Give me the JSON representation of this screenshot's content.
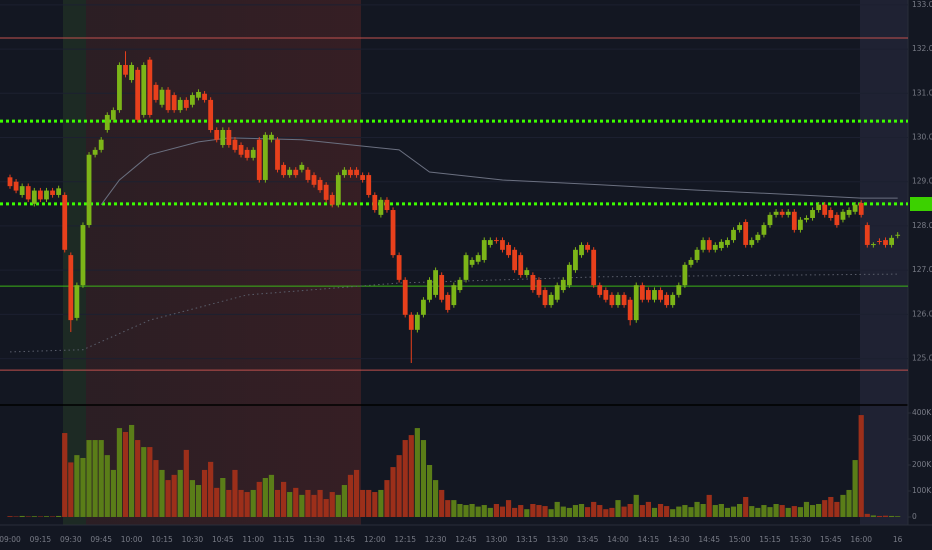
{
  "chart_data": {
    "type": "candlestick",
    "categories": [
      "09:00",
      null,
      null,
      null,
      null,
      "09:15",
      null,
      null,
      null,
      null,
      "09:30",
      null,
      null,
      null,
      null,
      "09:45",
      null,
      null,
      null,
      null,
      "10:00",
      null,
      null,
      null,
      null,
      "10:15",
      null,
      null,
      null,
      null,
      "10:30",
      null,
      null,
      null,
      null,
      "10:45",
      null,
      null,
      null,
      null,
      "11:00",
      null,
      null,
      null,
      null,
      "11:15",
      null,
      null,
      null,
      null,
      "11:30",
      null,
      null,
      null,
      null,
      "11:45",
      null,
      null,
      null,
      null,
      "12:00",
      null,
      null,
      null,
      null,
      "12:15",
      null,
      null,
      null,
      null,
      "12:30",
      null,
      null,
      null,
      null,
      "12:45",
      null,
      null,
      null,
      null,
      "13:00",
      null,
      null,
      null,
      null,
      "13:15",
      null,
      null,
      null,
      null,
      "13:30",
      null,
      null,
      null,
      null,
      "13:45",
      null,
      null,
      null,
      null,
      "14:00",
      null,
      null,
      null,
      null,
      "14:15",
      null,
      null,
      null,
      null,
      "14:30",
      null,
      null,
      null,
      null,
      "14:45",
      null,
      null,
      null,
      null,
      "15:00",
      null,
      null,
      null,
      null,
      "15:15",
      null,
      null,
      null,
      null,
      "15:30",
      null,
      null,
      null,
      null,
      "15:45",
      null,
      null,
      null,
      null,
      "16:00",
      null,
      null,
      null,
      null,
      null,
      "16"
    ],
    "open": [
      129.1,
      129.0,
      128.7,
      128.9,
      128.5,
      128.8,
      128.6,
      128.8,
      128.7,
      128.7,
      127.34,
      125.92,
      126.66,
      128.02,
      129.61,
      129.72,
      130.17,
      130.4,
      130.62,
      131.64,
      131.3,
      131.53,
      130.51,
      131.76,
      131.19,
      130.74,
      131.08,
      130.96,
      130.62,
      130.85,
      130.74,
      130.9,
      130.99,
      130.85,
      130.17,
      129.83,
      130.17,
      129.95,
      129.83,
      129.72,
      129.54,
      129.95,
      129.04,
      129.95,
      129.95,
      129.38,
      129.15,
      129.27,
      129.27,
      129.27,
      129.15,
      129.04,
      128.93,
      128.7,
      128.48,
      129.15,
      129.27,
      129.27,
      129.15,
      129.15,
      128.7,
      128.25,
      128.59,
      128.36,
      127.34,
      126.78,
      125.99,
      125.65,
      125.99,
      126.33,
      126.44,
      126.89,
      126.44,
      126.21,
      126.55,
      126.78,
      127.12,
      127.19,
      127.23,
      127.57,
      127.68,
      127.68,
      127.57,
      127.46,
      127.34,
      126.89,
      126.89,
      126.78,
      126.55,
      126.21,
      126.33,
      126.55,
      126.66,
      127.0,
      127.34,
      127.57,
      127.46,
      126.66,
      126.55,
      126.44,
      126.21,
      126.44,
      126.33,
      125.87,
      126.66,
      126.55,
      126.33,
      126.55,
      126.44,
      126.21,
      126.44,
      126.66,
      127.12,
      127.23,
      127.46,
      127.68,
      127.46,
      127.5,
      127.57,
      127.68,
      127.91,
      128.09,
      127.57,
      127.68,
      127.8,
      128.02,
      128.25,
      128.32,
      128.25,
      128.32,
      127.91,
      128.14,
      128.18,
      128.36,
      128.48,
      128.36,
      128.25,
      128.14,
      128.25,
      128.32,
      128.52,
      128.02,
      127.57,
      127.66,
      127.68,
      127.57,
      127.78
    ],
    "high": [
      129.16,
      129.06,
      128.96,
      128.96,
      128.86,
      128.86,
      128.86,
      128.86,
      128.91,
      128.76,
      127.4,
      126.72,
      128.08,
      129.67,
      129.78,
      130.01,
      130.57,
      130.68,
      131.7,
      131.95,
      131.7,
      131.59,
      131.7,
      131.82,
      131.25,
      131.14,
      131.14,
      131.02,
      130.91,
      130.91,
      131.02,
      131.09,
      131.05,
      130.91,
      130.23,
      130.23,
      130.23,
      130.01,
      129.89,
      129.78,
      129.78,
      130.01,
      130.12,
      130.12,
      130.01,
      129.44,
      129.33,
      129.33,
      129.44,
      129.33,
      129.21,
      129.1,
      128.99,
      128.76,
      129.21,
      129.33,
      129.33,
      129.33,
      129.21,
      129.21,
      128.76,
      128.65,
      128.65,
      128.42,
      127.4,
      126.84,
      126.05,
      126.05,
      126.39,
      126.84,
      127.06,
      126.95,
      126.5,
      126.72,
      126.84,
      127.4,
      127.29,
      127.4,
      127.74,
      127.74,
      127.74,
      127.74,
      127.63,
      127.52,
      127.4,
      127.06,
      126.95,
      126.84,
      126.61,
      126.5,
      126.72,
      126.84,
      127.18,
      127.52,
      127.63,
      127.63,
      127.52,
      126.72,
      126.61,
      126.5,
      126.5,
      126.5,
      126.39,
      126.72,
      126.72,
      126.61,
      126.61,
      126.61,
      126.5,
      126.5,
      126.72,
      127.18,
      127.29,
      127.52,
      127.74,
      127.74,
      127.63,
      127.7,
      127.74,
      127.97,
      128.08,
      128.15,
      127.74,
      127.86,
      128.08,
      128.31,
      128.38,
      128.38,
      128.38,
      128.38,
      128.2,
      128.24,
      128.42,
      128.54,
      128.54,
      128.42,
      128.31,
      128.38,
      128.42,
      128.54,
      128.58,
      128.08,
      127.63,
      127.72,
      127.74,
      127.79,
      127.86
    ],
    "low": [
      128.84,
      128.74,
      128.64,
      128.54,
      128.44,
      128.54,
      128.54,
      128.64,
      128.64,
      127.4,
      125.6,
      125.86,
      126.6,
      127.96,
      129.55,
      129.66,
      130.11,
      130.34,
      130.56,
      131.36,
      131.24,
      130.34,
      130.45,
      130.45,
      130.79,
      130.68,
      130.56,
      130.56,
      130.56,
      130.61,
      130.68,
      130.84,
      130.79,
      130.11,
      129.89,
      129.77,
      129.77,
      129.66,
      129.55,
      129.48,
      129.48,
      128.98,
      128.98,
      129.89,
      129.21,
      129.09,
      129.09,
      129.09,
      129.21,
      128.98,
      128.87,
      128.75,
      128.53,
      128.42,
      128.42,
      129.09,
      129.09,
      129.09,
      128.98,
      128.64,
      128.3,
      128.19,
      128.3,
      127.28,
      126.72,
      125.93,
      124.9,
      125.59,
      125.93,
      126.27,
      126.38,
      126.27,
      126.04,
      126.15,
      126.49,
      126.72,
      127.06,
      127.13,
      127.17,
      127.51,
      127.6,
      127.4,
      127.28,
      126.94,
      126.83,
      126.83,
      126.49,
      126.38,
      126.15,
      126.15,
      126.27,
      126.49,
      126.6,
      126.94,
      127.28,
      127.4,
      126.6,
      126.38,
      126.27,
      126.15,
      126.15,
      126.15,
      125.75,
      125.81,
      126.27,
      126.27,
      126.27,
      126.27,
      126.15,
      126.15,
      126.38,
      126.6,
      127.06,
      127.17,
      127.4,
      127.4,
      127.4,
      127.44,
      127.51,
      127.62,
      127.85,
      127.51,
      127.51,
      127.62,
      127.74,
      127.96,
      128.19,
      128.19,
      128.19,
      127.85,
      127.85,
      128.08,
      128.12,
      128.3,
      128.19,
      128.12,
      127.96,
      128.08,
      128.19,
      128.26,
      128.19,
      127.51,
      127.51,
      127.58,
      127.51,
      127.51,
      127.72
    ],
    "close": [
      128.9,
      128.8,
      128.9,
      128.6,
      128.8,
      128.6,
      128.8,
      128.7,
      128.85,
      127.46,
      125.87,
      126.66,
      128.02,
      129.61,
      129.72,
      129.95,
      130.51,
      130.62,
      131.64,
      131.42,
      131.64,
      130.4,
      131.64,
      130.51,
      130.85,
      131.08,
      130.62,
      130.62,
      130.85,
      130.67,
      130.96,
      131.03,
      130.85,
      130.17,
      129.95,
      130.17,
      129.83,
      129.72,
      129.61,
      129.54,
      129.72,
      129.04,
      130.06,
      130.06,
      129.27,
      129.15,
      129.27,
      129.15,
      129.38,
      129.04,
      128.93,
      128.81,
      128.59,
      128.48,
      129.15,
      129.27,
      129.15,
      129.15,
      129.04,
      128.7,
      128.36,
      128.59,
      128.36,
      127.34,
      126.78,
      125.99,
      125.65,
      125.99,
      126.33,
      126.78,
      127.0,
      126.33,
      126.1,
      126.66,
      126.78,
      127.34,
      127.23,
      127.34,
      127.68,
      127.68,
      127.66,
      127.46,
      127.34,
      127.0,
      126.89,
      127.0,
      126.55,
      126.44,
      126.21,
      126.44,
      126.66,
      126.78,
      127.12,
      127.46,
      127.57,
      127.46,
      126.66,
      126.44,
      126.33,
      126.21,
      126.44,
      126.21,
      125.87,
      126.66,
      126.33,
      126.33,
      126.55,
      126.33,
      126.21,
      126.44,
      126.66,
      127.12,
      127.23,
      127.46,
      127.68,
      127.46,
      127.57,
      127.64,
      127.68,
      127.91,
      128.02,
      127.57,
      127.68,
      127.8,
      128.02,
      128.25,
      128.32,
      128.25,
      128.32,
      127.91,
      128.14,
      128.18,
      128.36,
      128.48,
      128.25,
      128.18,
      128.02,
      128.32,
      128.36,
      128.48,
      128.25,
      127.57,
      127.59,
      127.64,
      127.57,
      127.73,
      127.8
    ],
    "up_color": "#7cb518",
    "down_color": "#e8401c",
    "ylim": [
      123.95,
      133.11
    ],
    "yticks": [
      {
        "value": 133,
        "label": "133.00"
      },
      {
        "value": 132,
        "label": "132.00"
      },
      {
        "value": 131,
        "label": "131.00"
      },
      {
        "value": 130,
        "label": "130.00"
      },
      {
        "value": 129,
        "label": "129.00"
      },
      {
        "value": 128,
        "label": "128.00"
      },
      {
        "value": 127,
        "label": "127.00"
      },
      {
        "value": 126,
        "label": "126.00"
      },
      {
        "value": 125,
        "label": "125.00"
      }
    ],
    "grid": true,
    "levels": [
      {
        "value": 132.25,
        "color": "#c0504d",
        "style": "solid"
      },
      {
        "value": 130.37,
        "color": "#3cff00",
        "style": "dotted"
      },
      {
        "value": 128.5,
        "color": "#3cff00",
        "style": "dotted"
      },
      {
        "value": 126.64,
        "color": "#3cb317",
        "style": "solid"
      },
      {
        "value": 124.74,
        "color": "#c0504d",
        "style": "solid"
      }
    ],
    "averages": [
      {
        "color": "#6b7080",
        "style": "solid",
        "x": [
          15,
          18,
          23,
          31,
          36,
          48,
          64,
          69,
          81,
          97,
          113,
          130,
          140,
          146
        ],
        "values": [
          128.48,
          129.04,
          129.61,
          129.9,
          129.99,
          129.95,
          129.72,
          129.22,
          129.04,
          128.93,
          128.81,
          128.7,
          128.63,
          128.63
        ]
      },
      {
        "color": "#5a5e6b",
        "style": "dotted",
        "x": [
          0,
          12,
          23,
          39,
          64,
          97,
          146
        ],
        "values": [
          125.15,
          125.2,
          125.87,
          126.44,
          126.71,
          126.85,
          126.91
        ]
      }
    ],
    "volume": {
      "ylim": [
        -30800,
        430800
      ],
      "yticks": [
        0,
        {
          "value": 100000,
          "label": "100K"
        },
        {
          "value": 200000,
          "label": "200K"
        },
        {
          "value": 300000,
          "label": "300K"
        },
        {
          "value": 400000,
          "label": "400K"
        }
      ],
      "up_color": "#5a7d18",
      "down_color": "#9c2f1a",
      "values": [
        3000,
        2000,
        4000,
        2000,
        3000,
        2000,
        3000,
        2000,
        4000,
        323000,
        210000,
        238000,
        227000,
        296000,
        296000,
        296000,
        238000,
        181000,
        342000,
        327000,
        354000,
        296000,
        269000,
        269000,
        219000,
        181000,
        142000,
        162000,
        181000,
        258000,
        142000,
        123000,
        181000,
        212000,
        112000,
        150000,
        104000,
        181000,
        104000,
        96000,
        104000,
        135000,
        150000,
        162000,
        104000,
        135000,
        96000,
        112000,
        85000,
        104000,
        85000,
        104000,
        69000,
        96000,
        85000,
        123000,
        162000,
        181000,
        104000,
        104000,
        96000,
        104000,
        142000,
        192000,
        238000,
        296000,
        315000,
        342000,
        296000,
        200000,
        142000,
        104000,
        65000,
        65000,
        50000,
        46000,
        50000,
        40000,
        46000,
        35000,
        50000,
        40000,
        65000,
        35000,
        46000,
        30000,
        50000,
        46000,
        42000,
        30000,
        58000,
        40000,
        35000,
        46000,
        50000,
        38000,
        58000,
        46000,
        30000,
        35000,
        65000,
        40000,
        50000,
        85000,
        46000,
        58000,
        35000,
        50000,
        42000,
        30000,
        40000,
        46000,
        38000,
        58000,
        50000,
        85000,
        46000,
        50000,
        35000,
        40000,
        50000,
        77000,
        42000,
        35000,
        46000,
        38000,
        50000,
        46000,
        35000,
        42000,
        38000,
        58000,
        46000,
        50000,
        65000,
        77000,
        58000,
        85000,
        104000,
        219000,
        392000,
        12000,
        6000,
        4000,
        5000,
        4000,
        3000
      ]
    }
  }
}
